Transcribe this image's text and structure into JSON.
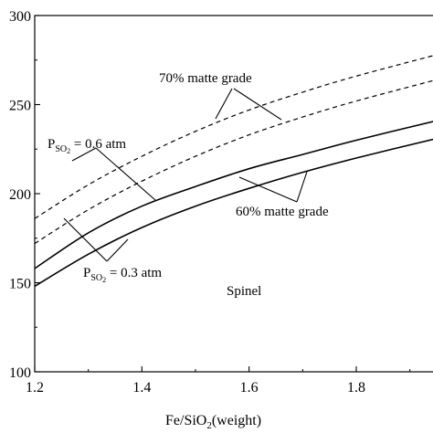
{
  "chart_data": {
    "type": "line",
    "title": "",
    "xlabel": "Fe/SiO",
    "xlabel_sub": "2",
    "xlabel_tail": "(weight)",
    "ylabel": "",
    "xlim": [
      1.2,
      1.95
    ],
    "ylim": [
      100,
      300
    ],
    "x_ticks": [
      1.2,
      1.4,
      1.6,
      1.8
    ],
    "x_tick_labels": [
      "1.2",
      "1.4",
      "1.6",
      "1.8"
    ],
    "y_ticks": [
      100,
      150,
      200,
      250,
      300
    ],
    "y_tick_labels": [
      "100",
      "150",
      "200",
      "250",
      "300"
    ],
    "grid": false,
    "series": [
      {
        "line_style": "dashed",
        "x": [
          1.2,
          1.3,
          1.4,
          1.5,
          1.6,
          1.7,
          1.8,
          1.95
        ],
        "y": [
          186,
          205,
          221,
          235,
          247,
          257,
          266,
          278
        ]
      },
      {
        "line_style": "dashed",
        "x": [
          1.2,
          1.3,
          1.4,
          1.5,
          1.6,
          1.7,
          1.8,
          1.95
        ],
        "y": [
          172,
          191,
          207,
          221,
          233,
          243,
          252,
          264
        ]
      },
      {
        "line_style": "solid",
        "x": [
          1.2,
          1.3,
          1.4,
          1.5,
          1.6,
          1.7,
          1.8,
          1.95
        ],
        "y": [
          158,
          178,
          193,
          204,
          214,
          222,
          230,
          241
        ]
      },
      {
        "line_style": "solid",
        "x": [
          1.2,
          1.3,
          1.4,
          1.5,
          1.6,
          1.7,
          1.8,
          1.95
        ],
        "y": [
          148,
          166,
          181,
          193,
          203,
          212,
          220,
          231
        ]
      }
    ],
    "annotations": {
      "matte70": "70% matte grade",
      "matte60": "60% matte grade",
      "pso2_high_main": "P",
      "pso2_high_sub": "SO",
      "pso2_high_sub2": "2",
      "pso2_high_tail": " = 0.6 atm",
      "pso2_low_main": "P",
      "pso2_low_sub": "SO",
      "pso2_low_sub2": "2",
      "pso2_low_tail": " = 0.3 atm",
      "region": "Spinel"
    },
    "colors": {
      "line": "#000000",
      "background": "#ffffff"
    }
  }
}
